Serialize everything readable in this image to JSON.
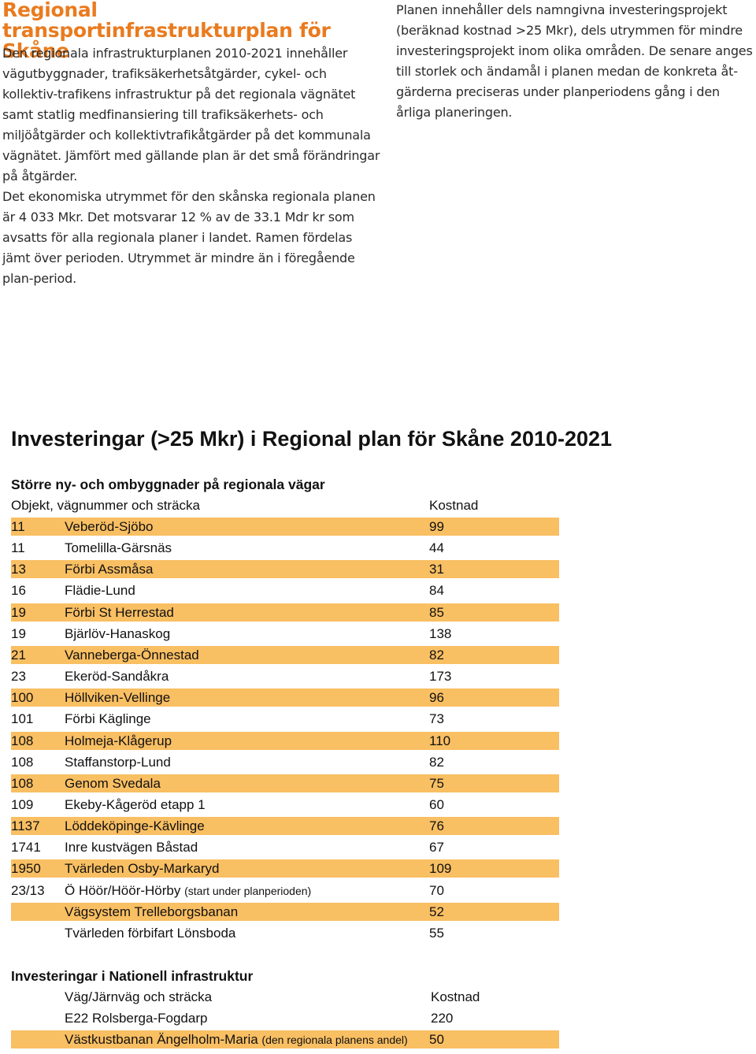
{
  "heading": "Regional transportinfrastrukturplan för Skåne",
  "paragraphs": {
    "p1": "Den regionala infrastrukturplanen 2010-2021 innehåller vägutbyggnader, trafiksäkerhetsåtgärder, cykel- och kollektiv-trafikens infrastruktur på det regionala vägnätet samt statlig medfinansiering till trafiksäkerhets- och miljöåtgärder och kollektivtrafikåtgärder på det kommunala vägnätet. Jämfört med gällande plan är det små förändringar på åtgärder.",
    "p2": "Det ekonomiska utrymmet för den skånska regionala planen är 4 033 Mkr. Det motsvarar 12 % av de 33.1 Mdr kr som avsatts för alla regionala planer i landet. Ramen fördelas jämt över perioden. Utrymmet är mindre än i föregående plan-period.",
    "p3": "Planen innehåller dels namngivna investeringsprojekt (beräknad kostnad >25 Mkr), dels utrymmen för mindre investeringsprojekt inom olika områden. De senare anges till storlek och ändamål i planen medan de konkreta åt-gärderna preciseras under planperiodens gång i den årliga planeringen."
  },
  "table_title": "Investeringar (>25 Mkr) i Regional plan för Skåne 2010-2021",
  "regional": {
    "section_title": "Större ny- och ombyggnader på regionala vägar",
    "header": {
      "object": "Objekt, vägnummer och sträcka",
      "cost": "Kostnad"
    },
    "rows": [
      {
        "road": "11",
        "name": " Veberöd-Sjöbo",
        "note": "",
        "cost": "99"
      },
      {
        "road": "11",
        "name": "Tomelilla-Gärsnäs",
        "note": "",
        "cost": "44"
      },
      {
        "road": "13",
        "name": "Förbi Assmåsa",
        "note": "",
        "cost": "31"
      },
      {
        "road": "16",
        "name": "Flädie-Lund",
        "note": "",
        "cost": "84"
      },
      {
        "road": "19",
        "name": "Förbi St Herrestad",
        "note": "",
        "cost": "85"
      },
      {
        "road": "19",
        "name": "Bjärlöv-Hanaskog",
        "note": "",
        "cost": "138"
      },
      {
        "road": "21",
        "name": "Vanneberga-Önnestad",
        "note": "",
        "cost": "82"
      },
      {
        "road": "23",
        "name": "Ekeröd-Sandåkra",
        "note": "",
        "cost": "173"
      },
      {
        "road": "100",
        "name": "Höllviken-Vellinge",
        "note": "",
        "cost": "96"
      },
      {
        "road": "101",
        "name": "Förbi Käglinge",
        "note": "",
        "cost": "73"
      },
      {
        "road": "108",
        "name": "Holmeja-Klågerup",
        "note": "",
        "cost": "110"
      },
      {
        "road": "108",
        "name": "Staffanstorp-Lund",
        "note": "",
        "cost": "82"
      },
      {
        "road": "108",
        "name": "Genom Svedala",
        "note": "",
        "cost": "75"
      },
      {
        "road": "109",
        "name": "Ekeby-Kågeröd etapp 1",
        "note": "",
        "cost": "60"
      },
      {
        "road": "1137",
        "name": "Löddeköpinge-Kävlinge",
        "note": "",
        "cost": "76"
      },
      {
        "road": "1741",
        "name": "Inre kustvägen Båstad",
        "note": "",
        "cost": "67"
      },
      {
        "road": "1950",
        "name": "Tvärleden Osby-Markaryd",
        "note": "",
        "cost": "109"
      },
      {
        "road": "23/13",
        "name": "Ö Höör/Höör-Hörby",
        "note": "(start under planperioden)",
        "cost": "70"
      },
      {
        "road": "",
        "name": "Vägsystem Trelleborgsbanan",
        "note": "",
        "cost": "52"
      },
      {
        "road": "",
        "name": "Tvärleden förbifart Lönsboda",
        "note": "",
        "cost": "55"
      }
    ]
  },
  "national": {
    "section_title": "Investeringar i Nationell infrastruktur",
    "header": {
      "object": "Väg/Järnväg och sträcka",
      "cost": "Kostnad"
    },
    "rows": [
      {
        "name": "E22 Rolsberga-Fogdarp",
        "note": "",
        "cost": "220"
      },
      {
        "name": "Västkustbanan Ängelholm-Maria",
        "note": "(den regionala planens andel)",
        "cost": "50"
      }
    ]
  },
  "colors": {
    "heading": "#e97b1f",
    "row_highlight": "#f9bf63"
  }
}
